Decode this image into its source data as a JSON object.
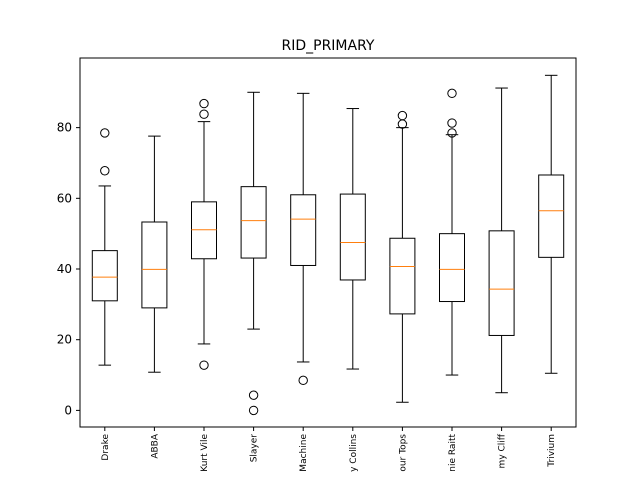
{
  "chart_data": {
    "type": "box",
    "title": "RID_PRIMARY",
    "xlabel": "",
    "ylabel": "",
    "ylim": [
      -4.7,
      99.7
    ],
    "yticks": [
      "0",
      "20",
      "40",
      "60",
      "80"
    ],
    "grid": false,
    "categories": [
      "Drake",
      "ABBA",
      "Kurt Vile",
      "Slayer",
      "Machine",
      "Phil Collins",
      "Four Tops",
      "Bonnie Raitt",
      "Jimmy Cliff",
      "Trivium"
    ],
    "x_tick_labels_visible": [
      "Drake",
      "ABBA",
      "Kurt Vile",
      "Slayer",
      "Machine",
      "y Collins",
      "our Tops",
      "nie Raitt",
      "my Cliff",
      "Trivium"
    ],
    "series": [
      {
        "category": "Drake",
        "whisker_low": 12.8,
        "q1": 31.0,
        "median": 37.7,
        "q3": 45.2,
        "whisker_high": 63.5,
        "outliers": [
          67.8,
          78.5
        ]
      },
      {
        "category": "ABBA",
        "whisker_low": 10.8,
        "q1": 29.0,
        "median": 39.9,
        "q3": 53.3,
        "whisker_high": 77.6,
        "outliers": []
      },
      {
        "category": "Kurt Vile",
        "whisker_low": 18.8,
        "q1": 42.9,
        "median": 51.1,
        "q3": 59.0,
        "whisker_high": 81.7,
        "outliers": [
          12.8,
          83.8,
          86.8
        ]
      },
      {
        "category": "Slayer",
        "whisker_low": 23.0,
        "q1": 43.1,
        "median": 53.7,
        "q3": 63.3,
        "whisker_high": 90.0,
        "outliers": [
          0.0,
          4.3
        ]
      },
      {
        "category": "Machine",
        "whisker_low": 13.7,
        "q1": 41.0,
        "median": 54.1,
        "q3": 61.0,
        "whisker_high": 89.7,
        "outliers": [
          8.5
        ]
      },
      {
        "category": "Phil Collins",
        "whisker_low": 11.7,
        "q1": 36.9,
        "median": 47.5,
        "q3": 61.2,
        "whisker_high": 85.4,
        "outliers": []
      },
      {
        "category": "Four Tops",
        "whisker_low": 2.3,
        "q1": 27.3,
        "median": 40.7,
        "q3": 48.7,
        "whisker_high": 80.0,
        "outliers": [
          81.0,
          83.4
        ]
      },
      {
        "category": "Bonnie Raitt",
        "whisker_low": 10.0,
        "q1": 30.8,
        "median": 39.9,
        "q3": 50.0,
        "whisker_high": 78.0,
        "outliers": [
          78.5,
          81.3,
          89.7
        ]
      },
      {
        "category": "Jimmy Cliff",
        "whisker_low": 5.0,
        "q1": 21.2,
        "median": 34.3,
        "q3": 50.8,
        "whisker_high": 91.2,
        "outliers": []
      },
      {
        "category": "Trivium",
        "whisker_low": 10.5,
        "q1": 43.3,
        "median": 56.5,
        "q3": 66.6,
        "whisker_high": 94.8,
        "outliers": []
      }
    ],
    "colors": {
      "box": "#000000",
      "median": "#ff7f0e",
      "outlier_edge": "#000000",
      "background": "#ffffff"
    }
  }
}
